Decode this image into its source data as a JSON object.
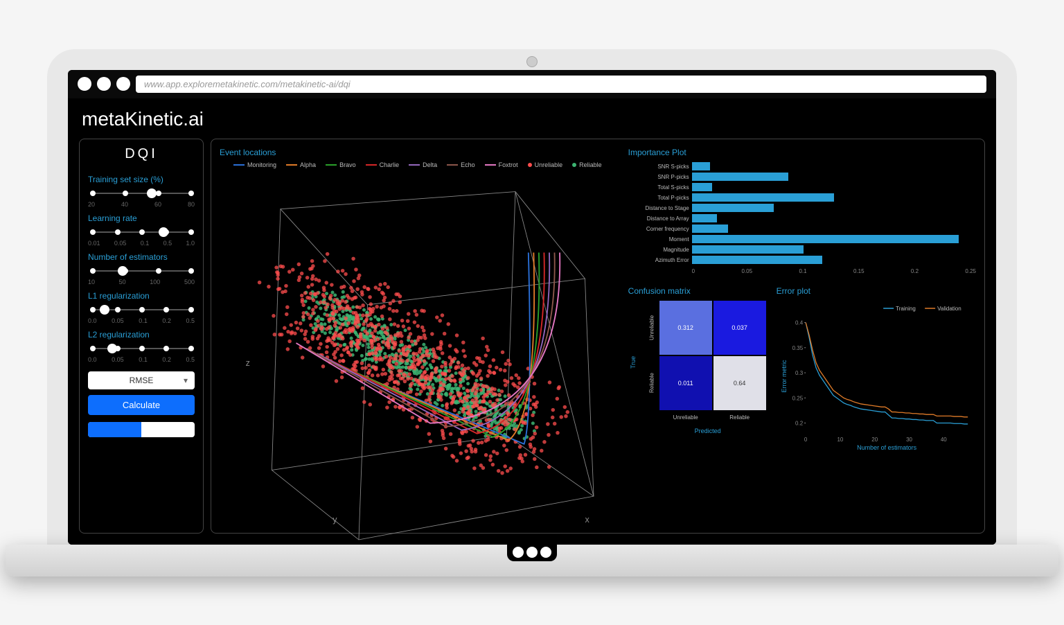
{
  "url": "www.app.exploremetakinetic.com/metakinetic-ai/dqi",
  "app_title": "metaKinetic.ai",
  "sidebar": {
    "title": "DQI",
    "params": [
      {
        "label": "Training set size (%)",
        "ticks": [
          "20",
          "40",
          "60",
          "80"
        ],
        "value_pct": 60
      },
      {
        "label": "Learning rate",
        "ticks": [
          "0.01",
          "0.05",
          "0.1",
          "0.5",
          "1.0"
        ],
        "value_pct": 72
      },
      {
        "label": "Number of estimators",
        "ticks": [
          "10",
          "50",
          "100",
          "500"
        ],
        "value_pct": 30
      },
      {
        "label": "L1 regularization",
        "ticks": [
          "0.0",
          "0.05",
          "0.1",
          "0.2",
          "0.5"
        ],
        "value_pct": 12
      },
      {
        "label": "L2 regularization",
        "ticks": [
          "0.0",
          "0.05",
          "0.1",
          "0.2",
          "0.5"
        ],
        "value_pct": 20
      }
    ],
    "metric": "RMSE",
    "calc_label": "Calculate",
    "progress_pct": 50
  },
  "event_locations": {
    "title": "Event locations",
    "legend_lines": [
      {
        "label": "Monitoring",
        "color": "#2a6fd6"
      },
      {
        "label": "Alpha",
        "color": "#e07b28"
      },
      {
        "label": "Bravo",
        "color": "#2aa02a"
      },
      {
        "label": "Charlie",
        "color": "#d62728"
      },
      {
        "label": "Delta",
        "color": "#9467bd"
      },
      {
        "label": "Echo",
        "color": "#8c564b"
      },
      {
        "label": "Foxtrot",
        "color": "#e377c2"
      }
    ],
    "legend_dots": [
      {
        "label": "Unreliable",
        "color": "#ff4d4d"
      },
      {
        "label": "Reliable",
        "color": "#3cb371"
      }
    ],
    "axes": {
      "x": "x",
      "y": "y",
      "z": "z"
    },
    "box_stroke": "#888",
    "point_count_red": 900,
    "point_count_green": 700,
    "well_colors": [
      "#2a6fd6",
      "#e07b28",
      "#2aa02a",
      "#d62728",
      "#9467bd",
      "#8c564b",
      "#e377c2"
    ]
  },
  "importance": {
    "title": "Importance Plot",
    "max": 0.25,
    "ticks": [
      "0",
      "0.05",
      "0.1",
      "0.15",
      "0.2",
      "0.25"
    ],
    "bars": [
      {
        "label": "SNR S-picks",
        "value": 0.016
      },
      {
        "label": "SNR P-picks",
        "value": 0.085
      },
      {
        "label": "Total S-picks",
        "value": 0.018
      },
      {
        "label": "Total P-picks",
        "value": 0.125
      },
      {
        "label": "Distance to Stage",
        "value": 0.072
      },
      {
        "label": "Distance to Array",
        "value": 0.022
      },
      {
        "label": "Corner frequency",
        "value": 0.032
      },
      {
        "label": "Moment",
        "value": 0.235
      },
      {
        "label": "Magnitude",
        "value": 0.098
      },
      {
        "label": "Azimuth Error",
        "value": 0.115
      }
    ],
    "bar_color": "#2a9fd6"
  },
  "confusion": {
    "title": "Confusion matrix",
    "xlabel": "Predicted",
    "ylabel": "True",
    "x_cats": [
      "Unreliable",
      "Reliable"
    ],
    "y_cats": [
      "Unreliable",
      "Reliable"
    ],
    "cells": [
      {
        "value": "0.312",
        "bg": "#5a6fe0"
      },
      {
        "value": "0.037",
        "bg": "#1a1ae0"
      },
      {
        "value": "0.011",
        "bg": "#1010b0"
      },
      {
        "value": "0.64",
        "bg": "#e0e0e8",
        "fg": "#333"
      }
    ]
  },
  "error_plot": {
    "title": "Error plot",
    "xlabel": "Number of estimators",
    "ylabel": "Error metric",
    "legend": [
      {
        "label": "Training",
        "color": "#2a9fd6"
      },
      {
        "label": "Validation",
        "color": "#e07b28"
      }
    ],
    "xlim": [
      0,
      47
    ],
    "xticks": [
      "0",
      "10",
      "20",
      "30",
      "40"
    ],
    "ylim": [
      0.18,
      0.42
    ],
    "yticks": [
      "0.2",
      "0.25",
      "0.3",
      "0.35",
      "0.4"
    ],
    "training": [
      0.4,
      0.37,
      0.335,
      0.31,
      0.295,
      0.285,
      0.275,
      0.265,
      0.255,
      0.25,
      0.245,
      0.24,
      0.237,
      0.235,
      0.232,
      0.23,
      0.228,
      0.227,
      0.226,
      0.225,
      0.224,
      0.223,
      0.222,
      0.222,
      0.216,
      0.21,
      0.21,
      0.209,
      0.209,
      0.208,
      0.208,
      0.207,
      0.207,
      0.206,
      0.206,
      0.205,
      0.205,
      0.205,
      0.2,
      0.2,
      0.2,
      0.2,
      0.2,
      0.199,
      0.199,
      0.199,
      0.198,
      0.198
    ],
    "validation": [
      0.4,
      0.375,
      0.345,
      0.32,
      0.305,
      0.295,
      0.285,
      0.275,
      0.265,
      0.26,
      0.255,
      0.25,
      0.247,
      0.245,
      0.242,
      0.24,
      0.238,
      0.237,
      0.236,
      0.235,
      0.234,
      0.233,
      0.232,
      0.232,
      0.228,
      0.222,
      0.222,
      0.221,
      0.221,
      0.22,
      0.22,
      0.219,
      0.219,
      0.218,
      0.218,
      0.217,
      0.217,
      0.217,
      0.214,
      0.214,
      0.214,
      0.214,
      0.214,
      0.213,
      0.213,
      0.213,
      0.212,
      0.212
    ]
  }
}
